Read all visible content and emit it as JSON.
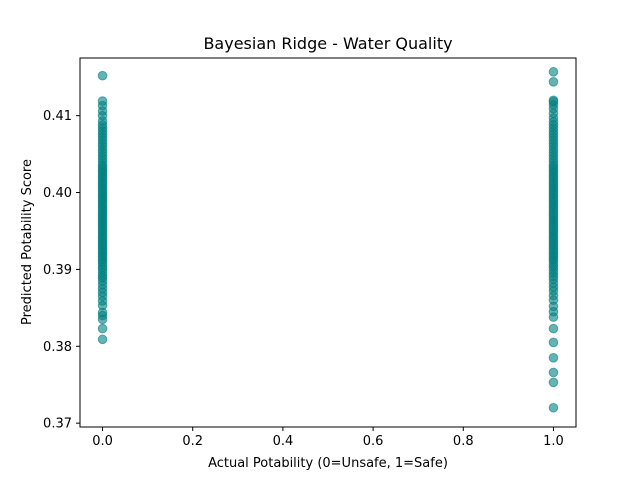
{
  "chart_data": {
    "type": "scatter",
    "title": "Bayesian Ridge - Water Quality",
    "xlabel": "Actual Potability (0=Unsafe, 1=Safe)",
    "ylabel": "Predicted Potability Score",
    "xlim": [
      -0.05,
      1.05
    ],
    "ylim": [
      0.3695,
      0.4175
    ],
    "xticks": [
      0.0,
      0.2,
      0.4,
      0.6,
      0.8,
      1.0
    ],
    "xtick_labels": [
      "0.0",
      "0.2",
      "0.4",
      "0.6",
      "0.8",
      "1.0"
    ],
    "yticks": [
      0.37,
      0.38,
      0.39,
      0.4,
      0.41
    ],
    "ytick_labels": [
      "0.37",
      "0.38",
      "0.39",
      "0.40",
      "0.41"
    ],
    "grid": false,
    "marker_color": "#008080",
    "marker_alpha": 0.6,
    "series": [
      {
        "x": [
          0,
          0,
          0,
          0,
          0,
          0,
          0,
          0,
          0,
          0,
          0,
          0,
          0,
          0,
          0,
          0,
          0,
          0,
          0,
          0,
          0,
          0,
          0,
          0,
          0,
          0,
          0,
          0,
          0,
          0,
          0,
          0,
          0,
          0,
          0,
          0,
          0,
          0,
          0,
          0,
          0,
          0,
          0,
          0,
          0,
          0,
          0,
          0,
          0,
          0,
          0,
          0,
          0,
          0,
          0,
          0,
          0,
          0,
          0,
          0,
          0,
          0,
          0,
          0,
          0,
          0,
          0,
          0,
          0,
          0,
          0,
          0,
          0,
          0,
          0,
          0,
          0,
          0,
          0,
          0
        ],
        "y": [
          0.3809,
          0.3823,
          0.3835,
          0.384,
          0.3844,
          0.3853,
          0.3859,
          0.3865,
          0.387,
          0.3875,
          0.388,
          0.3885,
          0.3889,
          0.3892,
          0.3896,
          0.39,
          0.3903,
          0.3907,
          0.391,
          0.3913,
          0.3916,
          0.3919,
          0.3922,
          0.3925,
          0.3928,
          0.3931,
          0.3934,
          0.3937,
          0.394,
          0.3943,
          0.3946,
          0.3949,
          0.3952,
          0.3955,
          0.3958,
          0.3961,
          0.3964,
          0.3967,
          0.397,
          0.3973,
          0.3976,
          0.3979,
          0.3982,
          0.3985,
          0.3988,
          0.3991,
          0.3994,
          0.3997,
          0.4,
          0.4003,
          0.4006,
          0.4009,
          0.4012,
          0.4015,
          0.4018,
          0.4021,
          0.4024,
          0.4027,
          0.403,
          0.4033,
          0.4036,
          0.404,
          0.4044,
          0.4048,
          0.4052,
          0.4056,
          0.406,
          0.4064,
          0.4068,
          0.4072,
          0.4076,
          0.408,
          0.4084,
          0.4088,
          0.4093,
          0.41,
          0.4106,
          0.4113,
          0.4119,
          0.4152
        ]
      },
      {
        "x": [
          1,
          1,
          1,
          1,
          1,
          1,
          1,
          1,
          1,
          1,
          1,
          1,
          1,
          1,
          1,
          1,
          1,
          1,
          1,
          1,
          1,
          1,
          1,
          1,
          1,
          1,
          1,
          1,
          1,
          1,
          1,
          1,
          1,
          1,
          1,
          1,
          1,
          1,
          1,
          1,
          1,
          1,
          1,
          1,
          1,
          1,
          1,
          1,
          1,
          1,
          1,
          1,
          1,
          1,
          1,
          1,
          1,
          1,
          1,
          1,
          1,
          1,
          1,
          1,
          1,
          1,
          1,
          1,
          1,
          1,
          1,
          1,
          1,
          1,
          1,
          1,
          1,
          1,
          1,
          1,
          1,
          1,
          1,
          1,
          1
        ],
        "y": [
          0.372,
          0.3753,
          0.3766,
          0.3785,
          0.3805,
          0.3823,
          0.3838,
          0.3845,
          0.3852,
          0.386,
          0.3866,
          0.3872,
          0.3877,
          0.3882,
          0.3887,
          0.3891,
          0.3895,
          0.3899,
          0.3903,
          0.3906,
          0.391,
          0.3913,
          0.3916,
          0.3919,
          0.3922,
          0.3925,
          0.3928,
          0.3931,
          0.3934,
          0.3937,
          0.394,
          0.3943,
          0.3946,
          0.3949,
          0.3952,
          0.3955,
          0.3958,
          0.3961,
          0.3964,
          0.3967,
          0.397,
          0.3973,
          0.3976,
          0.3979,
          0.3982,
          0.3985,
          0.3988,
          0.3991,
          0.3994,
          0.3997,
          0.4,
          0.4003,
          0.4006,
          0.4009,
          0.4012,
          0.4015,
          0.4018,
          0.4021,
          0.4024,
          0.4027,
          0.403,
          0.4033,
          0.4036,
          0.404,
          0.4044,
          0.4048,
          0.4052,
          0.4056,
          0.406,
          0.4064,
          0.4068,
          0.4072,
          0.4076,
          0.408,
          0.4084,
          0.4088,
          0.4092,
          0.4097,
          0.4103,
          0.4109,
          0.4114,
          0.4118,
          0.412,
          0.4144,
          0.4157
        ]
      }
    ]
  }
}
